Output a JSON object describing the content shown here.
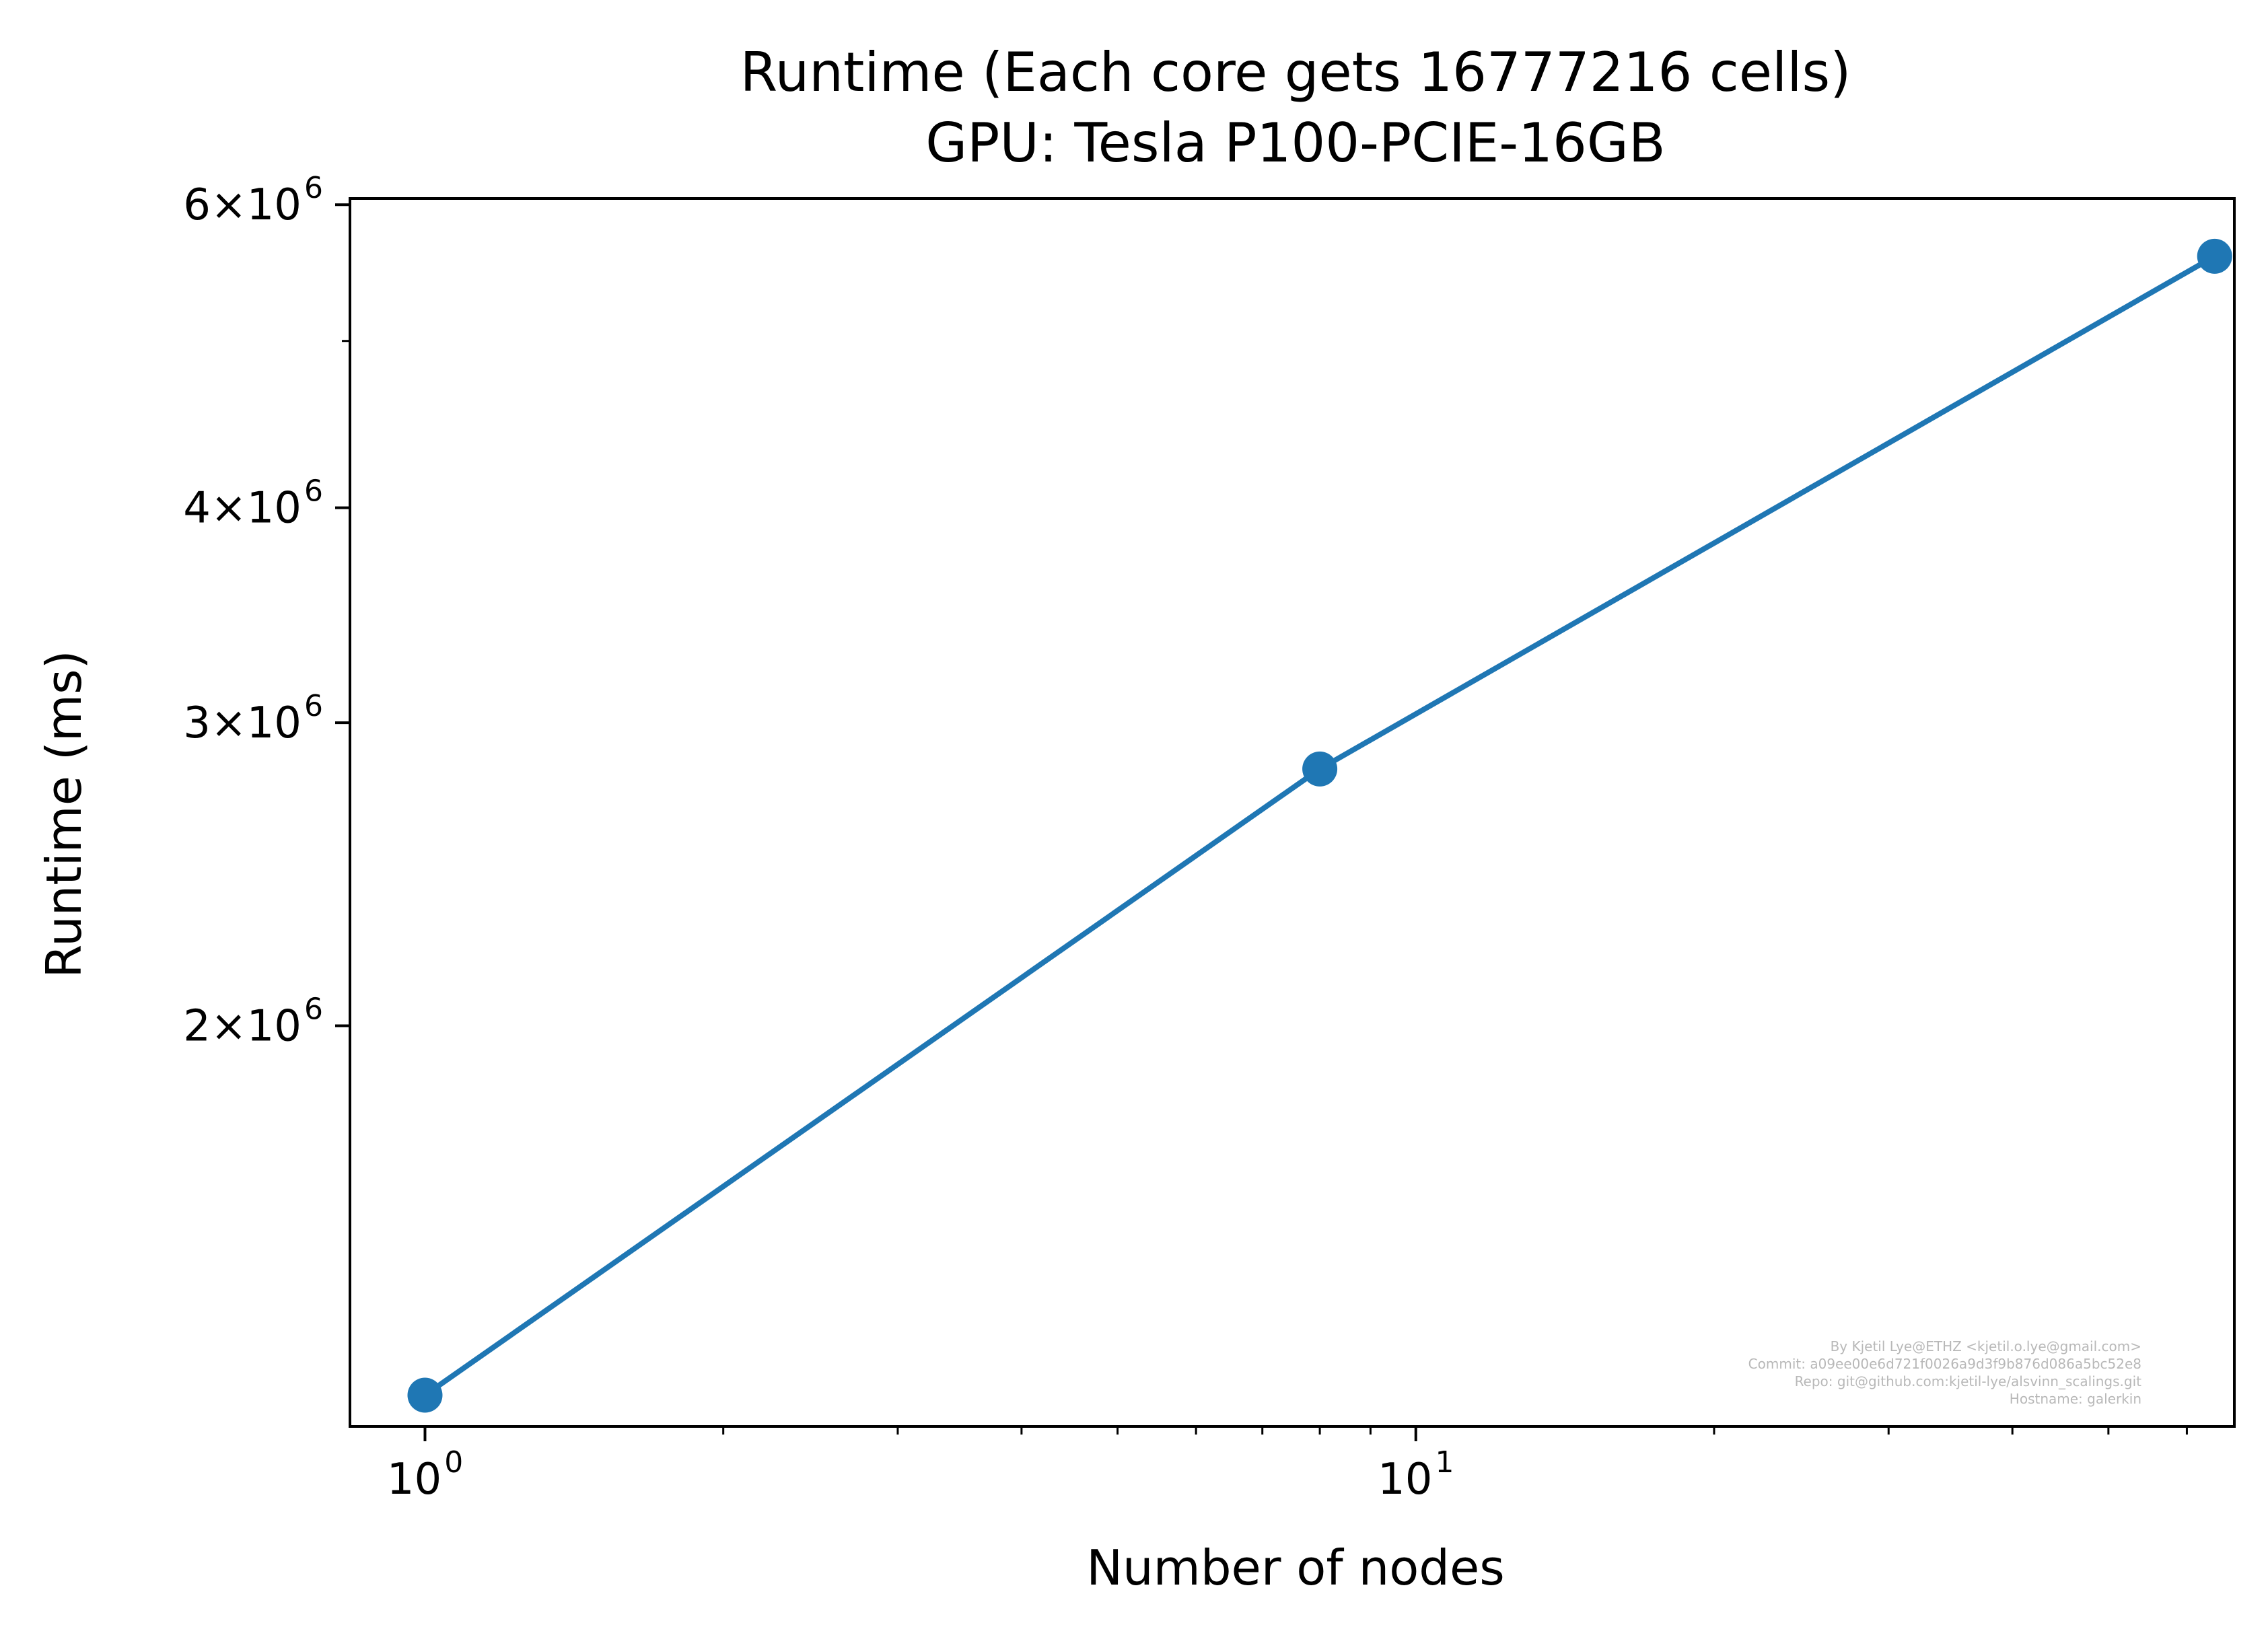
{
  "chart_data": {
    "type": "line",
    "title": [
      "Runtime (Each core gets 16777216 cells)",
      "GPU: Tesla P100-PCIE-16GB"
    ],
    "xlabel": "Number of nodes",
    "ylabel": "Runtime (ms)",
    "xscale": "log",
    "yscale": "log",
    "xlim": [
      0.84,
      67
    ],
    "ylim": [
      1170000,
      6050000
    ],
    "x_ticks": [
      {
        "value": 1,
        "mantissa": "",
        "base": "10",
        "exp": "0"
      },
      {
        "value": 10,
        "mantissa": "",
        "base": "10",
        "exp": "1"
      }
    ],
    "y_ticks": [
      {
        "value": 2000000,
        "mantissa": "2",
        "base": "10",
        "exp": "6"
      },
      {
        "value": 3000000,
        "mantissa": "3",
        "base": "10",
        "exp": "6"
      },
      {
        "value": 4000000,
        "mantissa": "4",
        "base": "10",
        "exp": "6"
      },
      {
        "value": 6000000,
        "mantissa": "6",
        "base": "10",
        "exp": "6"
      }
    ],
    "x_minor_ticks": [
      2,
      3,
      4,
      5,
      6,
      7,
      8,
      9,
      20,
      30,
      40,
      50,
      60
    ],
    "y_minor_ticks": [
      5000000
    ],
    "grid": false,
    "series": [
      {
        "color": "#1f77b4",
        "marker": "circle",
        "x": [
          1,
          8,
          64
        ],
        "y": [
          1220000,
          2820000,
          5600000
        ]
      }
    ],
    "annotation": [
      "By Kjetil Lye@ETHZ <kjetil.o.lye@gmail.com>",
      "Commit: a09ee00e6d721f0026a9d3f9b876d086a5bc52e8",
      "Repo: git@github.com:kjetil-lye/alsvinn_scalings.git",
      "Hostname: galerkin"
    ]
  }
}
